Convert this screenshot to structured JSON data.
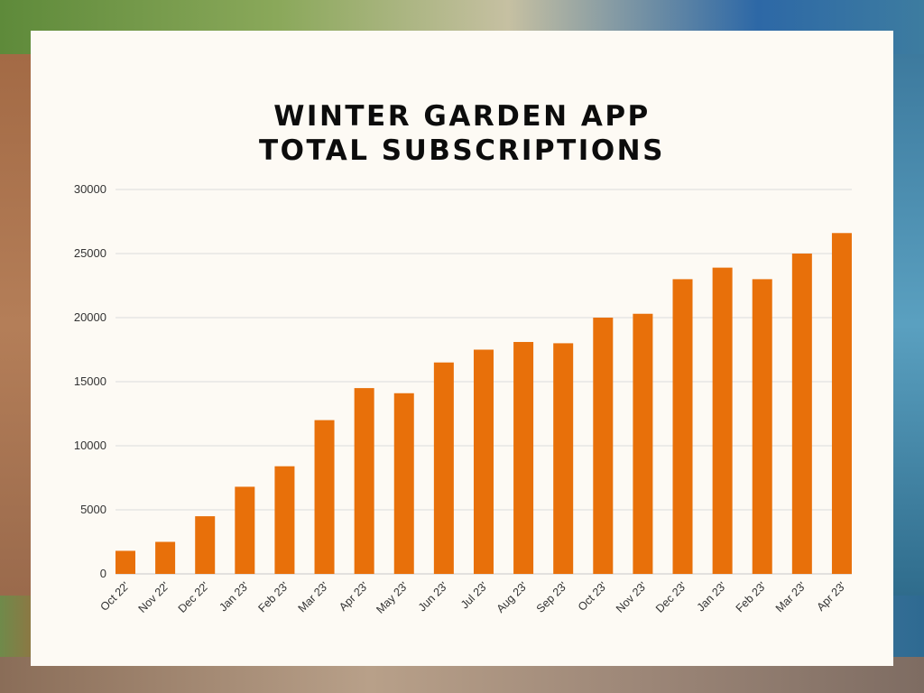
{
  "chart_data": {
    "type": "bar",
    "title_line1": "WINTER GARDEN APP",
    "title_line2": "TOTAL SUBSCRIPTIONS",
    "categories": [
      "Oct 22'",
      "Nov 22'",
      "Dec 22'",
      "Jan 23'",
      "Feb 23'",
      "Mar 23'",
      "Apr 23'",
      "May 23'",
      "Jun 23'",
      "Jul 23'",
      "Aug 23'",
      "Sep 23'",
      "Oct 23'",
      "Nov 23'",
      "Dec 23'",
      "Jan 23'",
      "Feb 23'",
      "Mar 23'",
      "Apr 23'"
    ],
    "values": [
      1800,
      2500,
      4500,
      6800,
      8400,
      12000,
      14500,
      14100,
      16500,
      17500,
      18100,
      18000,
      20000,
      20300,
      23000,
      23900,
      23000,
      25000,
      26600
    ],
    "ylim": [
      0,
      30000
    ],
    "yticks": [
      "0",
      "5000",
      "10000",
      "15000",
      "20000",
      "25000",
      "30000"
    ],
    "bar_color": "#e8700a",
    "grid": true
  }
}
